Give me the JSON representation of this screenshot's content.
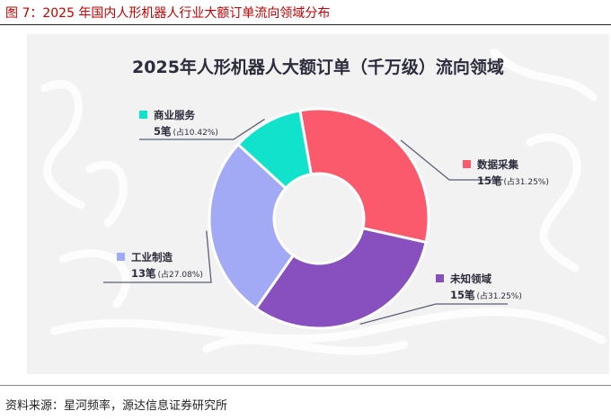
{
  "figure_caption": "图 7：2025 年国内人形机器人行业大额订单流向领域分布",
  "source": "资料来源：星河频率，源达信息证券研究所",
  "chart_data": {
    "type": "pie",
    "donut": true,
    "title": "2025年人形机器人大额订单（千万级）流向领域",
    "unit": "笔",
    "slices": [
      {
        "name": "数据采集",
        "value": 15,
        "percent_label": "(占31.25%)",
        "value_label": "15笔",
        "color": "#fb5a6c"
      },
      {
        "name": "未知领域",
        "value": 15,
        "percent_label": "(占31.25%)",
        "value_label": "15笔",
        "color": "#8750be"
      },
      {
        "name": "工业制造",
        "value": 13,
        "percent_label": "(占27.08%)",
        "value_label": "13笔",
        "color": "#a2a9f5"
      },
      {
        "name": "商业服务",
        "value": 5,
        "percent_label": "(占10.42%)",
        "value_label": "5笔",
        "color": "#11e2cc"
      }
    ]
  }
}
